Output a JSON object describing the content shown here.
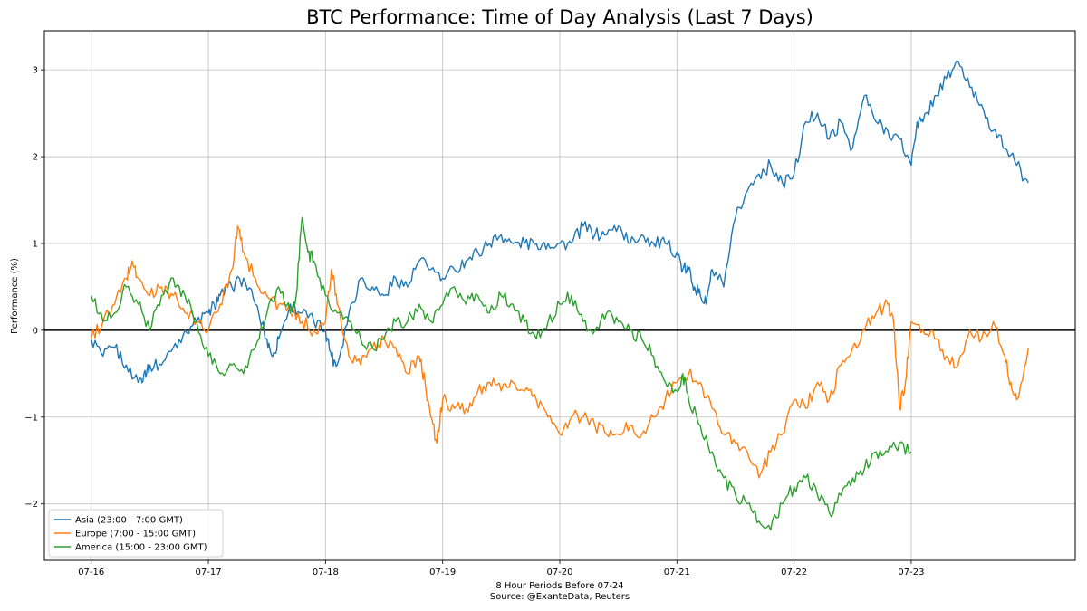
{
  "chart_data": {
    "type": "line",
    "title": "BTC Performance: Time of Day Analysis (Last 7 Days)",
    "xlabel": "8 Hour Periods Before 07-24",
    "xlabel_source": "Source: @ExanteData, Reuters",
    "ylabel": "Performance (%)",
    "x_ticks": [
      "07-16",
      "07-17",
      "07-18",
      "07-19",
      "07-20",
      "07-21",
      "07-22",
      "07-23"
    ],
    "xlim": [
      -0.4,
      8.4
    ],
    "ylim": [
      -2.65,
      3.45
    ],
    "y_ticks": [
      -2,
      -1,
      0,
      1,
      2,
      3
    ],
    "grid": true,
    "zero_line": true,
    "legend_position": "bottom-left",
    "series": [
      {
        "name": "Asia (23:00 - 7:00 GMT)",
        "color": "#1f77b4",
        "x": [
          0,
          0.1,
          0.2,
          0.3,
          0.4,
          0.45,
          0.5,
          0.6,
          0.7,
          0.8,
          0.9,
          1.0,
          1.05,
          1.1,
          1.2,
          1.3,
          1.4,
          1.5,
          1.55,
          1.6,
          1.7,
          1.8,
          1.9,
          2.0,
          2.05,
          2.1,
          2.2,
          2.3,
          2.4,
          2.5,
          2.6,
          2.7,
          2.8,
          2.9,
          3.0,
          3.1,
          3.2,
          3.3,
          3.4,
          3.5,
          3.6,
          3.7,
          3.8,
          3.9,
          4.0,
          4.1,
          4.2,
          4.3,
          4.4,
          4.5,
          4.6,
          4.7,
          4.8,
          4.9,
          5.0,
          5.05,
          5.1,
          5.15,
          5.2,
          5.25,
          5.3,
          5.4,
          5.5,
          5.6,
          5.7,
          5.8,
          5.9,
          6.0,
          6.1,
          6.2,
          6.3,
          6.4,
          6.5,
          6.6,
          6.7,
          6.8,
          6.9,
          7.0,
          7.05,
          7.1,
          7.2,
          7.3,
          7.4,
          7.5,
          7.6,
          7.7,
          7.8,
          7.9,
          8.0
        ],
        "values": [
          -0.1,
          -0.3,
          -0.2,
          -0.4,
          -0.6,
          -0.5,
          -0.4,
          -0.4,
          -0.2,
          0.0,
          0.1,
          0.2,
          0.3,
          0.4,
          0.5,
          0.6,
          0.3,
          -0.1,
          -0.3,
          -0.1,
          0.3,
          0.2,
          0.1,
          0.0,
          -0.3,
          -0.4,
          0.2,
          0.6,
          0.5,
          0.4,
          0.6,
          0.5,
          0.8,
          0.7,
          0.6,
          0.7,
          0.8,
          0.9,
          1.0,
          1.1,
          1.0,
          1.0,
          1.0,
          1.0,
          1.0,
          1.0,
          1.2,
          1.1,
          1.1,
          1.2,
          1.0,
          1.1,
          1.0,
          1.0,
          0.9,
          0.7,
          0.7,
          0.5,
          0.4,
          0.3,
          0.7,
          0.5,
          1.3,
          1.6,
          1.8,
          1.9,
          1.7,
          1.8,
          2.4,
          2.5,
          2.2,
          2.4,
          2.1,
          2.7,
          2.4,
          2.3,
          2.2,
          1.9,
          2.4,
          2.4,
          2.7,
          2.9,
          3.1,
          2.8,
          2.6,
          2.3,
          2.1,
          1.9,
          1.7
        ],
        "values_note": ""
      },
      {
        "name": "Europe (7:00 - 15:00 GMT)",
        "color": "#ff7f0e",
        "x": [
          0,
          0.1,
          0.2,
          0.3,
          0.35,
          0.4,
          0.5,
          0.6,
          0.7,
          0.8,
          0.9,
          1.0,
          1.1,
          1.2,
          1.25,
          1.3,
          1.4,
          1.5,
          1.6,
          1.7,
          1.8,
          1.9,
          2.0,
          2.05,
          2.1,
          2.2,
          2.3,
          2.4,
          2.5,
          2.6,
          2.7,
          2.8,
          2.85,
          2.9,
          2.95,
          3.0,
          3.1,
          3.2,
          3.3,
          3.4,
          3.5,
          3.6,
          3.7,
          3.8,
          3.9,
          4.0,
          4.1,
          4.2,
          4.3,
          4.4,
          4.5,
          4.6,
          4.7,
          4.8,
          4.9,
          5.0,
          5.1,
          5.2,
          5.3,
          5.4,
          5.5,
          5.6,
          5.7,
          5.8,
          5.9,
          6.0,
          6.1,
          6.2,
          6.3,
          6.4,
          6.5,
          6.6,
          6.7,
          6.8,
          6.85,
          6.9,
          6.95,
          7.0,
          7.1,
          7.2,
          7.3,
          7.4,
          7.5,
          7.6,
          7.7,
          7.8,
          7.85,
          7.9,
          8.0
        ],
        "values": [
          -0.1,
          0.1,
          0.3,
          0.6,
          0.8,
          0.6,
          0.4,
          0.5,
          0.4,
          0.2,
          0.1,
          0.0,
          0.3,
          0.7,
          1.2,
          0.9,
          0.6,
          0.4,
          0.3,
          0.2,
          0.1,
          0.0,
          0.1,
          0.7,
          0.3,
          -0.3,
          -0.4,
          -0.2,
          -0.1,
          -0.2,
          -0.5,
          -0.3,
          -0.6,
          -1.0,
          -1.3,
          -0.8,
          -0.9,
          -0.9,
          -0.7,
          -0.6,
          -0.7,
          -0.6,
          -0.7,
          -0.8,
          -1.0,
          -1.2,
          -1.0,
          -1.0,
          -1.1,
          -1.2,
          -1.2,
          -1.1,
          -1.2,
          -1.0,
          -0.8,
          -0.6,
          -0.5,
          -0.6,
          -0.9,
          -1.2,
          -1.3,
          -1.4,
          -1.7,
          -1.4,
          -1.2,
          -0.8,
          -0.9,
          -0.6,
          -0.8,
          -0.4,
          -0.2,
          0.0,
          0.2,
          0.3,
          0.1,
          -0.9,
          -0.6,
          0.1,
          0.0,
          -0.1,
          -0.3,
          -0.4,
          0.0,
          -0.1,
          0.1,
          -0.3,
          -0.6,
          -0.8,
          -0.2
        ],
        "values_note": ""
      },
      {
        "name": "America (15:00 - 23:00 GMT)",
        "color": "#2ca02c",
        "x": [
          0,
          0.1,
          0.2,
          0.3,
          0.4,
          0.5,
          0.6,
          0.7,
          0.8,
          0.9,
          1.0,
          1.1,
          1.2,
          1.3,
          1.4,
          1.5,
          1.6,
          1.7,
          1.75,
          1.8,
          1.85,
          1.9,
          2.0,
          2.1,
          2.2,
          2.3,
          2.4,
          2.5,
          2.6,
          2.7,
          2.8,
          2.9,
          3.0,
          3.1,
          3.2,
          3.3,
          3.4,
          3.5,
          3.6,
          3.7,
          3.8,
          3.9,
          4.0,
          4.1,
          4.2,
          4.3,
          4.4,
          4.5,
          4.6,
          4.7,
          4.8,
          4.9,
          5.0,
          5.05,
          5.1,
          5.2,
          5.3,
          5.4,
          5.5,
          5.6,
          5.7,
          5.8,
          5.9,
          6.0,
          6.1,
          6.2,
          6.3,
          6.4,
          6.5,
          6.6,
          6.7,
          6.8,
          6.9,
          7.0
        ],
        "values": [
          0.4,
          0.1,
          0.2,
          0.5,
          0.3,
          0.0,
          0.4,
          0.6,
          0.4,
          0.1,
          -0.3,
          -0.5,
          -0.4,
          -0.5,
          -0.2,
          0.2,
          0.5,
          0.2,
          0.4,
          1.3,
          0.9,
          0.8,
          0.4,
          0.2,
          0.1,
          -0.1,
          -0.2,
          -0.1,
          0.1,
          0.1,
          0.3,
          0.1,
          0.3,
          0.5,
          0.3,
          0.4,
          0.2,
          0.4,
          0.3,
          0.1,
          -0.1,
          0.1,
          0.3,
          0.4,
          0.1,
          0.0,
          0.2,
          0.1,
          0.0,
          -0.1,
          -0.3,
          -0.6,
          -0.7,
          -0.5,
          -0.8,
          -1.1,
          -1.4,
          -1.7,
          -1.9,
          -2.0,
          -2.2,
          -2.3,
          -2.0,
          -1.8,
          -1.7,
          -1.9,
          -2.1,
          -1.9,
          -1.7,
          -1.6,
          -1.4,
          -1.4,
          -1.3,
          -1.4
        ],
        "values_note": ""
      }
    ]
  }
}
